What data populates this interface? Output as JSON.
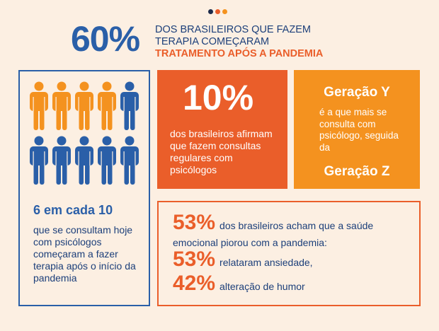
{
  "colors": {
    "background": "#fcefe2",
    "blue": "#2a5fa8",
    "dark_blue": "#1c3f7a",
    "orange": "#ea5e2a",
    "light_orange": "#f4921f"
  },
  "header": {
    "percent": "60%",
    "line1": "DOS BRASILEIROS QUE FAZEM",
    "line2": "TERAPIA COMEÇARAM",
    "line3": "TRATAMENTO APÓS A PANDEMIA"
  },
  "people": {
    "icons": [
      "orange",
      "orange",
      "orange",
      "orange",
      "blue",
      "blue",
      "blue",
      "blue",
      "blue",
      "blue"
    ],
    "title": "6 em cada 10",
    "text": "que se consultam hoje com psicólogos começaram a fazer terapia após o início da pandemia"
  },
  "stat10": {
    "percent": "10%",
    "text": "dos brasileiros afirmam que fazem consultas regulares com psicólogos"
  },
  "generation": {
    "title_y": "Geração Y",
    "text": "é a que mais se consulta com psicólogo, seguida da",
    "title_z": "Geração Z"
  },
  "stats": {
    "s1_num": "53%",
    "s1_text": "dos brasileiros acham que a saúde",
    "s1_text_cont": "emocional piorou com a pandemia:",
    "s2_num": "53%",
    "s2_text": "relataram ansiedade,",
    "s3_num": "42%",
    "s3_text": "alteração de humor"
  }
}
